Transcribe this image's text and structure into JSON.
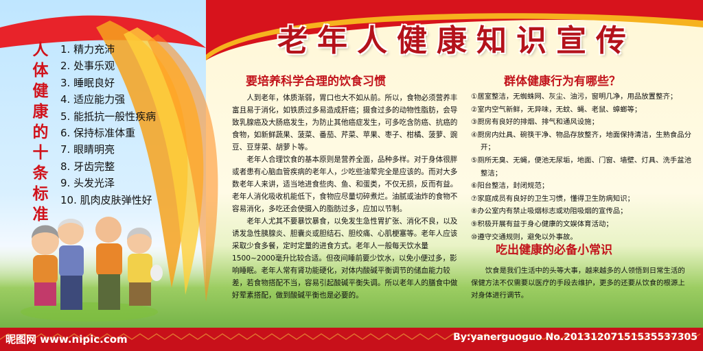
{
  "title": "老年人健康知识宣传",
  "left_panel": {
    "vertical_title": "人体健康的十条标准",
    "standards": [
      "1. 精力充沛",
      "2. 处事乐观",
      "3. 睡眠良好",
      "4. 适应能力强",
      "5. 能抵抗一般性疾病",
      "6. 保持标准体重",
      "7. 眼睛明亮",
      "8. 牙齿完整",
      "9. 头发光泽",
      "10. 肌肉皮肤弹性好"
    ]
  },
  "middle": {
    "heading": "要培养科学合理的饮食习惯",
    "paragraphs": [
      "人到老年，体质渐弱，胃口也大不如从前。所以，食物必须营养丰富且易于消化，如铁质过多易造成肝癌；摄食过多的动物性脂肪，会导致乳腺癌及大肠癌发生，为防止其他癌症发生，可多吃含防癌、抗癌的食物，如新鲜蔬果、菠菜、番茄、芹菜、苹果、枣子、柑橘、菠萝、豌豆、豆芽菜、胡萝卜等。",
      "老年人合理饮食的基本原则是营养全面，品种多样。对于身体很胖或者患有心脑血管疾病的老年人，少吃些油荤完全是应该的。而对大多数老年人来讲，适当地进食些肉、鱼、和蛋类，不仅无损，反而有益。老年人消化吸收机能低下，食物应尽量切碎煮烂。油腻或油炸的食物不容易消化，多吃还会使摄入的脂肪过多，应加以节制。",
      "老年人尤其不要暴饮暴食，以免发生急性胃扩张、消化不良，以及诱发急性胰腺炎、胆囊炎或胆结石、胆绞痛、心肌梗塞等。老年人应该采取少食多餐，定时定量的进食方式。老年人一般每天饮水量1500~2000毫升比较合适。但夜间睡前要少饮水，以免小便过多，影响睡眠。老年人常有肾功能硬化，对体内酸碱平衡调节的储血能力较差，若食物搭配不当，容易引起酸碱平衡失调。所以老年人的膳食中做好荤素搭配，做到酸碱平衡也是必要的。"
    ]
  },
  "right": {
    "heading": "群体健康行为有哪些？",
    "items": [
      "①居室整洁，无蜘蛛网、灰尘、油污，窗明几净，用品放置整齐；",
      "②室内空气新鲜，无异味，无蚊、蝇、老鼠、蟑螂等；",
      "③厨房有良好的排烟、排气和通风设施；",
      "④厨房内灶具、碗筷干净、物品存放整齐，地面保持清洁，生熟食品分开；",
      "⑤厕所无臭、无蝇，便池无尿垢，地面、门窗、墙壁、灯具、洗手盆池整洁；",
      "⑥阳台整洁，封闭规范；",
      "⑦家庭成员有良好的卫生习惯，懂得卫生防病知识；",
      "⑧办公室内有禁止吸烟标志或劝阻吸烟的宣传品；",
      "⑨积极开展有益于身心健康的文娱体育活动；",
      "⑩遵守交通规则，避免以外事故。"
    ],
    "tips_heading": "吃出健康的必备小常识",
    "tips_text": "饮食是我们生活中的头等大事，越来越多的人领悟到日常生活的保健方法不仅需要以医疗的手段去维护，更多的还要从饮食的根源上对身体进行调节。"
  },
  "watermark": {
    "logo": "昵图网 www.nipic.com",
    "id": "By:yanerguoguo No.20131207151535537305"
  },
  "colors": {
    "accent_red": "#c2131b",
    "ribbon_orange": "#f29a1c",
    "grass_green": "#5fa53a"
  }
}
